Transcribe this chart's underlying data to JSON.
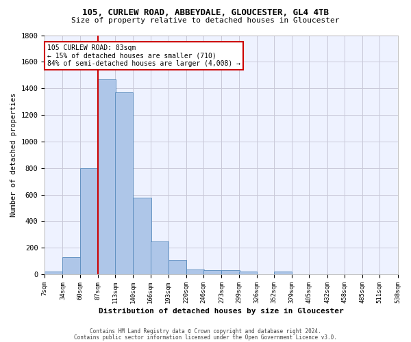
{
  "title1": "105, CURLEW ROAD, ABBEYDALE, GLOUCESTER, GL4 4TB",
  "title2": "Size of property relative to detached houses in Gloucester",
  "xlabel": "Distribution of detached houses by size in Gloucester",
  "ylabel": "Number of detached properties",
  "footer1": "Contains HM Land Registry data © Crown copyright and database right 2024.",
  "footer2": "Contains public sector information licensed under the Open Government Licence v3.0.",
  "bins": [
    7,
    34,
    60,
    87,
    113,
    140,
    166,
    193,
    220,
    246,
    273,
    299,
    326,
    352,
    379,
    405,
    432,
    458,
    485,
    511,
    538
  ],
  "bin_labels": [
    "7sqm",
    "34sqm",
    "60sqm",
    "87sqm",
    "113sqm",
    "140sqm",
    "166sqm",
    "193sqm",
    "220sqm",
    "246sqm",
    "273sqm",
    "299sqm",
    "326sqm",
    "352sqm",
    "379sqm",
    "405sqm",
    "432sqm",
    "458sqm",
    "485sqm",
    "511sqm",
    "538sqm"
  ],
  "bar_values": [
    20,
    130,
    800,
    1470,
    1370,
    575,
    250,
    110,
    35,
    30,
    30,
    20,
    0,
    20,
    0,
    0,
    0,
    0,
    0,
    0
  ],
  "bar_color": "#aec6e8",
  "bar_edge_color": "#5588bb",
  "vline_x": 87,
  "vline_color": "#cc0000",
  "ylim": [
    0,
    1800
  ],
  "yticks": [
    0,
    200,
    400,
    600,
    800,
    1000,
    1200,
    1400,
    1600,
    1800
  ],
  "annotation_line1": "105 CURLEW ROAD: 83sqm",
  "annotation_line2": "← 15% of detached houses are smaller (710)",
  "annotation_line3": "84% of semi-detached houses are larger (4,008) →",
  "annotation_box_color": "#cc0000",
  "background_color": "#eef2ff",
  "grid_color": "#c8c8d8"
}
